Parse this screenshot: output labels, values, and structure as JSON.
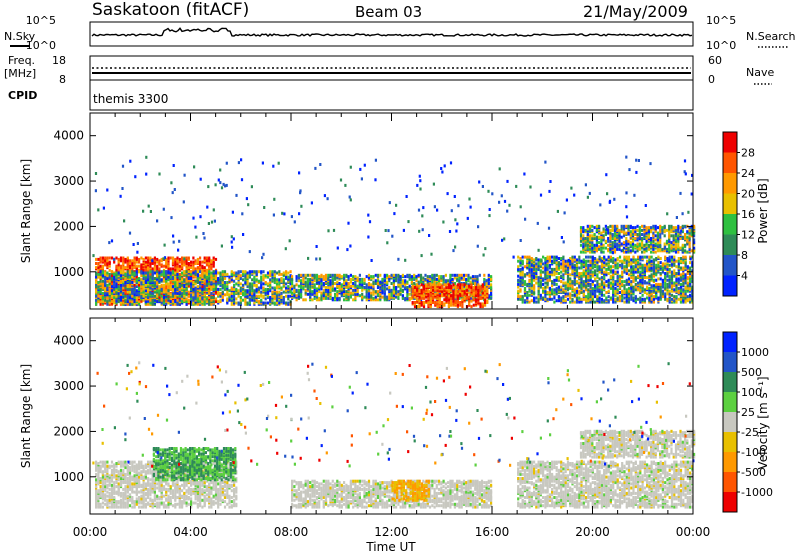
{
  "header": {
    "station": "Saskatoon (fitACF)",
    "beam": "Beam 03",
    "date": "21/May/2009"
  },
  "strips": {
    "nsky_label": "N.Sky",
    "nsky_ticks": [
      "10^5",
      "10^0"
    ],
    "nsearch_label": "N.Search",
    "freq_label_1": "Freq.",
    "freq_label_2": "[MHz]",
    "freq_ticks": [
      "18",
      "8"
    ],
    "nave_label": "Nave",
    "nave_ticks": [
      "60",
      "0"
    ],
    "cpid_label": "CPID",
    "cpid_text": "themis 3300"
  },
  "colors": {
    "power": [
      "#0022ff",
      "#2255c8",
      "#2e8b57",
      "#2ec040",
      "#e8c000",
      "#ff9900",
      "#ff5500",
      "#ee0000"
    ],
    "velocity": [
      "#0022ff",
      "#2255c8",
      "#2e8b57",
      "#5cd040",
      "#c8c8c0",
      "#e8c000",
      "#ff9900",
      "#ff5500",
      "#ee0000"
    ]
  },
  "power_colorbar": {
    "label": "Power [dB]",
    "ticks": [
      "28",
      "24",
      "20",
      "16",
      "12",
      "8",
      "4"
    ]
  },
  "velocity_colorbar": {
    "label": "Velocity [m s⁻¹]",
    "ticks": [
      "1000",
      "500",
      "100",
      "25",
      "-25",
      "-100",
      "-500",
      "-1000"
    ]
  },
  "chart_data": [
    {
      "type": "heatmap",
      "panel": "power",
      "ylabel": "Slant Range [km]",
      "xlabel": "Time UT",
      "xlim": [
        "00:00",
        "24:00"
      ],
      "ylim": [
        180,
        4500
      ],
      "x_ticks": [
        "00:00",
        "04:00",
        "08:00",
        "12:00",
        "16:00",
        "20:00",
        "00:00"
      ],
      "y_ticks": [
        "1000",
        "2000",
        "3000",
        "4000"
      ],
      "colorbar": "power",
      "features": [
        {
          "start": 0.2,
          "end": 5.0,
          "rmin": 250,
          "rmax": 1300,
          "level": "high"
        },
        {
          "start": 0.2,
          "end": 8.0,
          "rmin": 250,
          "rmax": 1000,
          "level": "medium"
        },
        {
          "start": 8.0,
          "end": 16.0,
          "rmin": 350,
          "rmax": 900,
          "level": "medium"
        },
        {
          "start": 12.8,
          "end": 15.8,
          "rmin": 200,
          "rmax": 700,
          "level": "high"
        },
        {
          "start": 17.0,
          "end": 24.0,
          "rmin": 300,
          "rmax": 1300,
          "level": "medium"
        },
        {
          "start": 19.5,
          "end": 24.0,
          "rmin": 1400,
          "rmax": 2000,
          "level": "medium"
        }
      ]
    },
    {
      "type": "heatmap",
      "panel": "velocity",
      "ylabel": "Slant Range [km]",
      "xlabel": "Time UT",
      "xlim": [
        "00:00",
        "24:00"
      ],
      "ylim": [
        180,
        4500
      ],
      "x_ticks": [
        "00:00",
        "04:00",
        "08:00",
        "12:00",
        "16:00",
        "20:00",
        "00:00"
      ],
      "y_ticks": [
        "1000",
        "2000",
        "3000",
        "4000"
      ],
      "colorbar": "velocity",
      "features": [
        {
          "start": 0.2,
          "end": 5.8,
          "rmin": 300,
          "rmax": 1300,
          "level": "ground"
        },
        {
          "start": 2.5,
          "end": 5.8,
          "rmin": 900,
          "rmax": 1600,
          "level": "positive"
        },
        {
          "start": 8.0,
          "end": 16.0,
          "rmin": 300,
          "rmax": 900,
          "level": "ground"
        },
        {
          "start": 12.0,
          "end": 13.5,
          "rmin": 450,
          "rmax": 900,
          "level": "negative"
        },
        {
          "start": 17.0,
          "end": 24.0,
          "rmin": 300,
          "rmax": 1300,
          "level": "ground"
        },
        {
          "start": 19.5,
          "end": 24.0,
          "rmin": 1400,
          "rmax": 2000,
          "level": "ground"
        }
      ]
    }
  ]
}
